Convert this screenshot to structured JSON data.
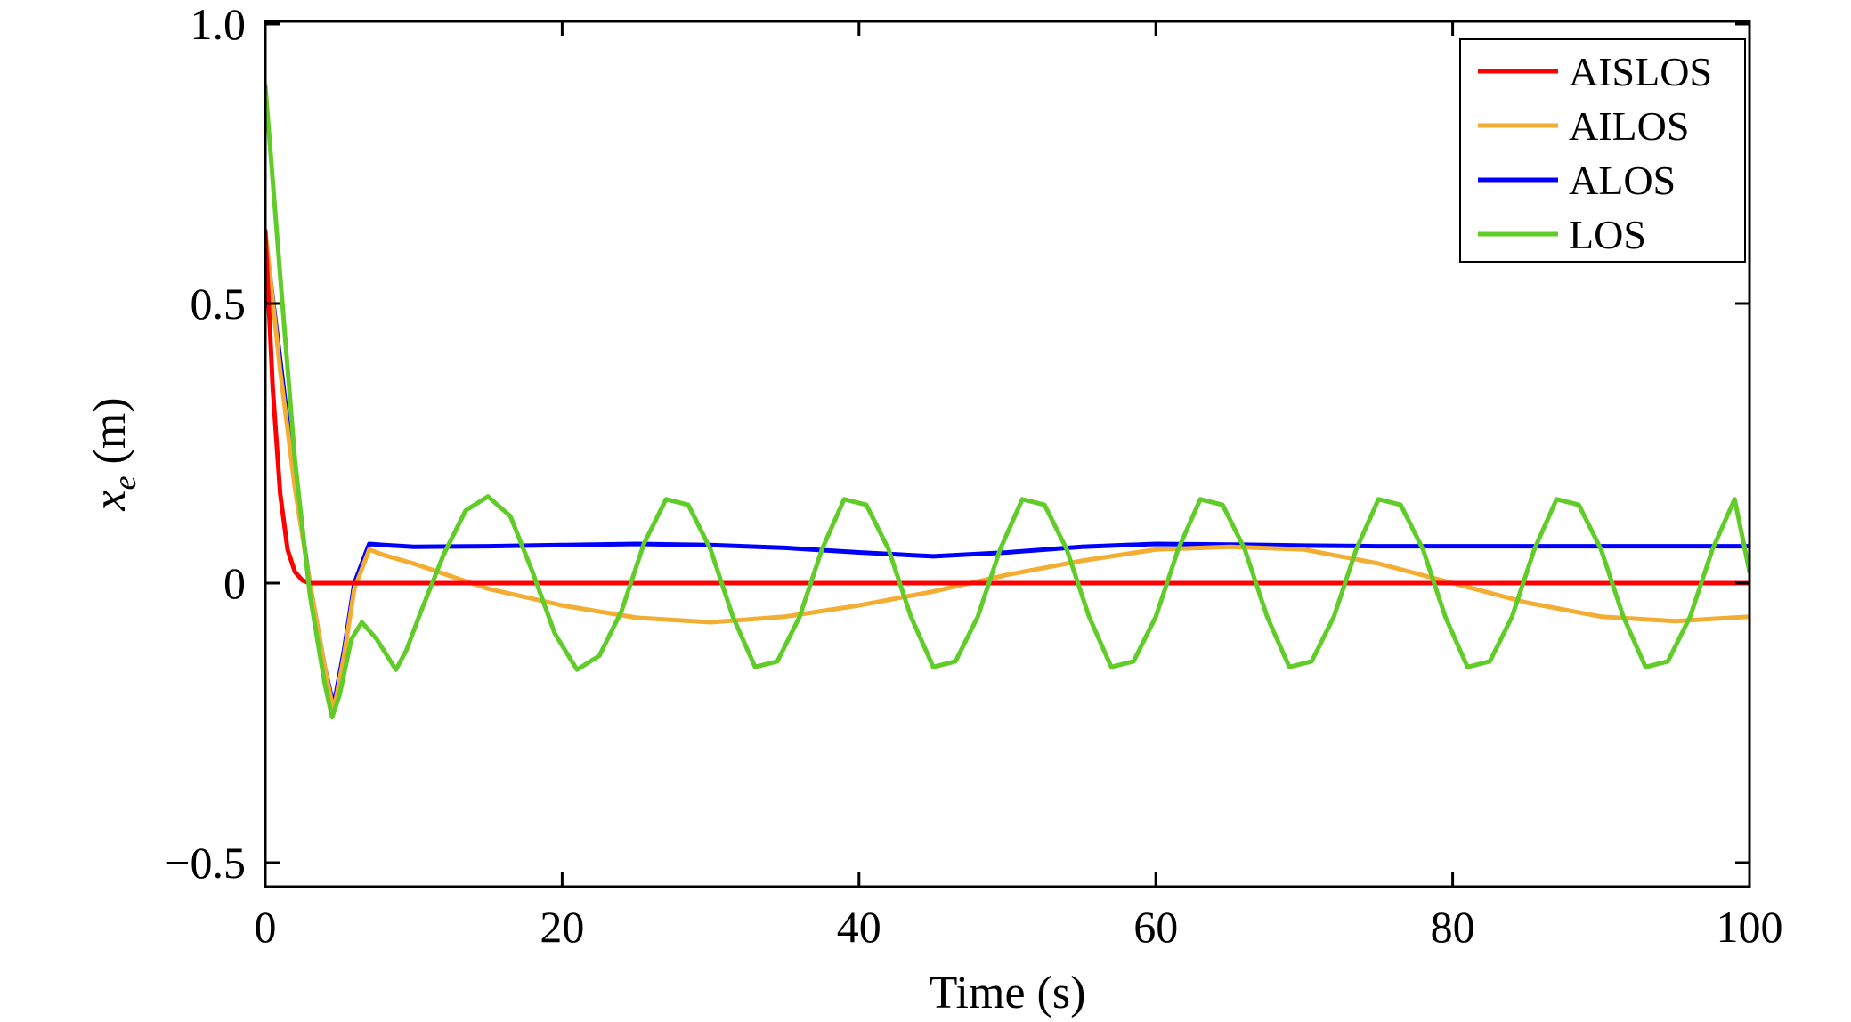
{
  "chart_data": {
    "type": "line",
    "title": "",
    "xlabel": "Time (s)",
    "ylabel": {
      "base": "x",
      "subscript": "e",
      "unit": " (m)"
    },
    "xlim": [
      0,
      100
    ],
    "ylim": [
      -0.55,
      1.0
    ],
    "xticks": [
      0,
      20,
      40,
      60,
      80,
      100
    ],
    "xtick_labels": [
      "0",
      "20",
      "40",
      "60",
      "80",
      "100"
    ],
    "yticks": [
      1.0,
      0.5,
      0,
      -0.5
    ],
    "ytick_labels": [
      "1.0",
      "0.5",
      "0",
      "−0.5"
    ],
    "grid": false,
    "legend_position": "top-right",
    "series": [
      {
        "name": "AISLOS",
        "color": "#ff0000",
        "x": [
          0,
          0.5,
          1,
          1.5,
          2,
          2.5,
          3,
          5,
          10,
          20,
          30,
          40,
          50,
          60,
          70,
          80,
          90,
          100
        ],
        "y": [
          0.63,
          0.35,
          0.16,
          0.06,
          0.02,
          0.005,
          0.0,
          0.0,
          0.0,
          0.0,
          0.0,
          0.0,
          0.0,
          0.0,
          0.0,
          0.0,
          0.0,
          0.0
        ]
      },
      {
        "name": "AILOS",
        "color": "#f2ad32",
        "x": [
          0,
          1,
          2,
          3,
          4,
          4.6,
          5.3,
          6,
          7,
          8,
          10,
          15,
          20,
          25,
          30,
          35,
          40,
          45,
          50,
          55,
          60,
          65,
          70,
          75,
          80,
          85,
          90,
          95,
          100
        ],
        "y": [
          0.63,
          0.38,
          0.17,
          0.0,
          -0.15,
          -0.23,
          -0.13,
          -0.01,
          0.06,
          0.05,
          0.035,
          -0.01,
          -0.04,
          -0.062,
          -0.07,
          -0.06,
          -0.04,
          -0.015,
          0.015,
          0.04,
          0.06,
          0.065,
          0.06,
          0.035,
          0.0,
          -0.035,
          -0.06,
          -0.068,
          -0.06
        ]
      },
      {
        "name": "ALOS",
        "color": "#0000ff",
        "x": [
          0,
          1,
          2,
          3,
          4,
          4.6,
          5.3,
          6,
          7,
          8,
          10,
          15,
          20,
          25,
          30,
          35,
          40,
          45,
          50,
          55,
          60,
          65,
          70,
          75,
          80,
          85,
          90,
          95,
          100
        ],
        "y": [
          0.62,
          0.4,
          0.18,
          0.0,
          -0.15,
          -0.22,
          -0.12,
          0.0,
          0.07,
          0.068,
          0.065,
          0.066,
          0.068,
          0.07,
          0.068,
          0.063,
          0.055,
          0.048,
          0.055,
          0.065,
          0.07,
          0.069,
          0.067,
          0.066,
          0.066,
          0.066,
          0.066,
          0.066,
          0.066
        ]
      },
      {
        "name": "LOS",
        "color": "#5fcc28",
        "x": [
          0,
          1,
          2,
          3,
          4,
          4.5,
          5,
          5.8,
          6.5,
          7.5,
          8.8,
          9.5,
          10.5,
          12.0,
          13.5,
          15.0,
          16.5,
          18.0,
          19.5,
          21.0,
          22.5,
          24.0,
          25.5,
          27.0,
          28.5,
          30.0,
          31.5,
          33.0,
          34.5,
          36.0,
          37.5,
          39.0,
          40.5,
          42.0,
          43.5,
          45.0,
          46.5,
          48.0,
          49.5,
          51.0,
          52.5,
          54.0,
          55.5,
          57.0,
          58.5,
          60.0,
          61.5,
          63.0,
          64.5,
          66.0,
          67.5,
          69.0,
          70.5,
          72.0,
          73.5,
          75.0,
          76.5,
          78.0,
          79.5,
          81.0,
          82.5,
          84.0,
          85.5,
          87.0,
          88.5,
          90.0,
          91.5,
          93.0,
          94.5,
          96.0,
          97.5,
          99.0,
          100
        ],
        "y": [
          0.89,
          0.55,
          0.22,
          -0.02,
          -0.18,
          -0.24,
          -0.2,
          -0.1,
          -0.07,
          -0.1,
          -0.155,
          -0.12,
          -0.05,
          0.05,
          0.13,
          0.155,
          0.12,
          0.02,
          -0.09,
          -0.155,
          -0.13,
          -0.05,
          0.07,
          0.15,
          0.14,
          0.06,
          -0.06,
          -0.15,
          -0.14,
          -0.06,
          0.06,
          0.15,
          0.14,
          0.06,
          -0.06,
          -0.15,
          -0.14,
          -0.06,
          0.06,
          0.15,
          0.14,
          0.06,
          -0.06,
          -0.15,
          -0.14,
          -0.06,
          0.06,
          0.15,
          0.14,
          0.06,
          -0.06,
          -0.15,
          -0.14,
          -0.06,
          0.06,
          0.15,
          0.14,
          0.06,
          -0.06,
          -0.15,
          -0.14,
          -0.06,
          0.06,
          0.15,
          0.14,
          0.06,
          -0.06,
          -0.15,
          -0.14,
          -0.06,
          0.06,
          0.15,
          0.02
        ]
      }
    ]
  }
}
